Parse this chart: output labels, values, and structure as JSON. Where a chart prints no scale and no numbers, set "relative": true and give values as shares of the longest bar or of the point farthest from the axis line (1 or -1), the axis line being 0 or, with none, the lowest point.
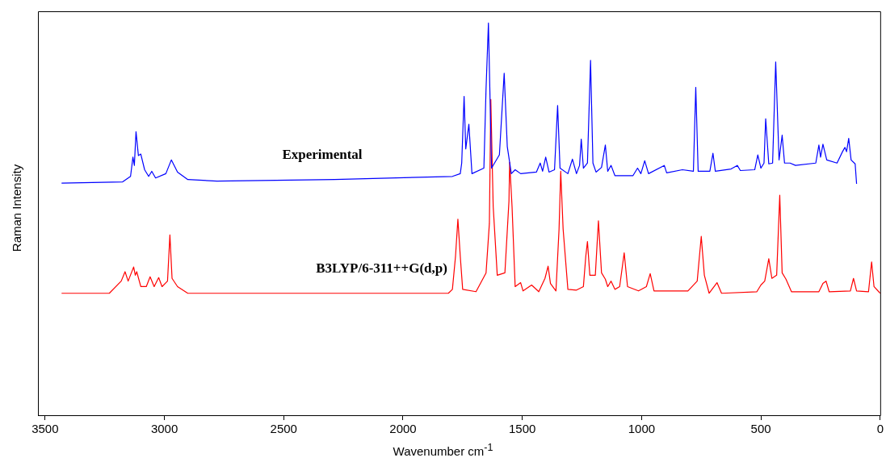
{
  "chart_data": {
    "type": "line",
    "relative": true,
    "xlabel": "Wavenumber cm$^{-1}$",
    "ylabel": "Raman Intensity",
    "xlim": [
      3530,
      0
    ],
    "xticks": [
      3500,
      3000,
      2500,
      2000,
      1500,
      1000,
      500,
      0
    ],
    "grid": false,
    "legend": false,
    "marker": "none",
    "line_style": "solid",
    "series": [
      {
        "name": "Experimental",
        "color": "#0000ff",
        "x": [
          3431,
          3175,
          3142,
          3132,
          3126,
          3119,
          3109,
          3099,
          3083,
          3066,
          3053,
          3037,
          2994,
          2971,
          2945,
          2902,
          2780,
          2287,
          1793,
          1760,
          1754,
          1744,
          1737,
          1724,
          1711,
          1661,
          1652,
          1642,
          1629,
          1596,
          1576,
          1563,
          1546,
          1530,
          1507,
          1441,
          1425,
          1415,
          1402,
          1388,
          1365,
          1352,
          1342,
          1309,
          1290,
          1273,
          1260,
          1253,
          1244,
          1227,
          1214,
          1204,
          1191,
          1168,
          1152,
          1142,
          1128,
          1112,
          1036,
          1017,
          1003,
          987,
          971,
          905,
          895,
          829,
          783,
          773,
          763,
          714,
          701,
          691,
          625,
          599,
          586,
          526,
          513,
          500,
          487,
          480,
          467,
          451,
          438,
          424,
          411,
          401,
          378,
          355,
          270,
          257,
          250,
          240,
          224,
          181,
          158,
          148,
          141,
          132,
          122,
          105,
          99
        ],
        "values": [
          0.592,
          0.595,
          0.609,
          0.658,
          0.637,
          0.723,
          0.662,
          0.666,
          0.626,
          0.609,
          0.622,
          0.605,
          0.616,
          0.651,
          0.62,
          0.601,
          0.597,
          0.601,
          0.609,
          0.616,
          0.643,
          0.813,
          0.679,
          0.742,
          0.616,
          0.63,
          0.832,
          1.0,
          0.63,
          0.664,
          0.872,
          0.685,
          0.616,
          0.626,
          0.616,
          0.62,
          0.643,
          0.622,
          0.658,
          0.62,
          0.626,
          0.79,
          0.63,
          0.616,
          0.653,
          0.616,
          0.637,
          0.704,
          0.63,
          0.643,
          0.905,
          0.643,
          0.62,
          0.632,
          0.689,
          0.622,
          0.637,
          0.611,
          0.611,
          0.63,
          0.616,
          0.649,
          0.616,
          0.637,
          0.618,
          0.626,
          0.622,
          0.836,
          0.622,
          0.622,
          0.668,
          0.622,
          0.628,
          0.637,
          0.624,
          0.626,
          0.664,
          0.63,
          0.643,
          0.756,
          0.641,
          0.643,
          0.901,
          0.651,
          0.714,
          0.643,
          0.643,
          0.637,
          0.643,
          0.689,
          0.658,
          0.691,
          0.651,
          0.643,
          0.672,
          0.683,
          0.672,
          0.706,
          0.651,
          0.641,
          0.59
        ]
      },
      {
        "name": "B3LYP/6-311++G(d,p)",
        "color": "#ff0000",
        "x": [
          3431,
          3231,
          3181,
          3165,
          3152,
          3129,
          3122,
          3116,
          3099,
          3076,
          3060,
          3043,
          3024,
          3010,
          2987,
          2977,
          2968,
          2945,
          2902,
          1810,
          1793,
          1780,
          1770,
          1760,
          1750,
          1694,
          1652,
          1638,
          1632,
          1622,
          1605,
          1573,
          1556,
          1553,
          1543,
          1530,
          1507,
          1497,
          1461,
          1431,
          1405,
          1392,
          1382,
          1359,
          1346,
          1339,
          1329,
          1309,
          1273,
          1244,
          1234,
          1227,
          1217,
          1194,
          1181,
          1168,
          1152,
          1142,
          1128,
          1112,
          1092,
          1073,
          1059,
          1013,
          980,
          964,
          948,
          865,
          806,
          767,
          750,
          737,
          717,
          684,
          665,
          517,
          500,
          484,
          467,
          454,
          434,
          421,
          411,
          395,
          372,
          257,
          240,
          227,
          214,
          125,
          112,
          99,
          49,
          36,
          26,
          0
        ],
        "values": [
          0.311,
          0.311,
          0.342,
          0.366,
          0.342,
          0.378,
          0.357,
          0.366,
          0.328,
          0.328,
          0.353,
          0.328,
          0.351,
          0.328,
          0.342,
          0.46,
          0.349,
          0.328,
          0.311,
          0.311,
          0.321,
          0.405,
          0.5,
          0.405,
          0.321,
          0.315,
          0.363,
          0.489,
          0.805,
          0.532,
          0.357,
          0.363,
          0.546,
          0.645,
          0.532,
          0.328,
          0.338,
          0.317,
          0.332,
          0.315,
          0.349,
          0.38,
          0.336,
          0.317,
          0.475,
          0.622,
          0.475,
          0.321,
          0.319,
          0.328,
          0.405,
          0.443,
          0.357,
          0.357,
          0.496,
          0.363,
          0.347,
          0.328,
          0.342,
          0.321,
          0.328,
          0.414,
          0.328,
          0.317,
          0.328,
          0.361,
          0.317,
          0.317,
          0.317,
          0.342,
          0.456,
          0.357,
          0.311,
          0.338,
          0.311,
          0.315,
          0.332,
          0.342,
          0.399,
          0.349,
          0.357,
          0.561,
          0.363,
          0.347,
          0.315,
          0.315,
          0.336,
          0.342,
          0.315,
          0.317,
          0.349,
          0.317,
          0.315,
          0.391,
          0.328,
          0.311
        ]
      }
    ]
  }
}
